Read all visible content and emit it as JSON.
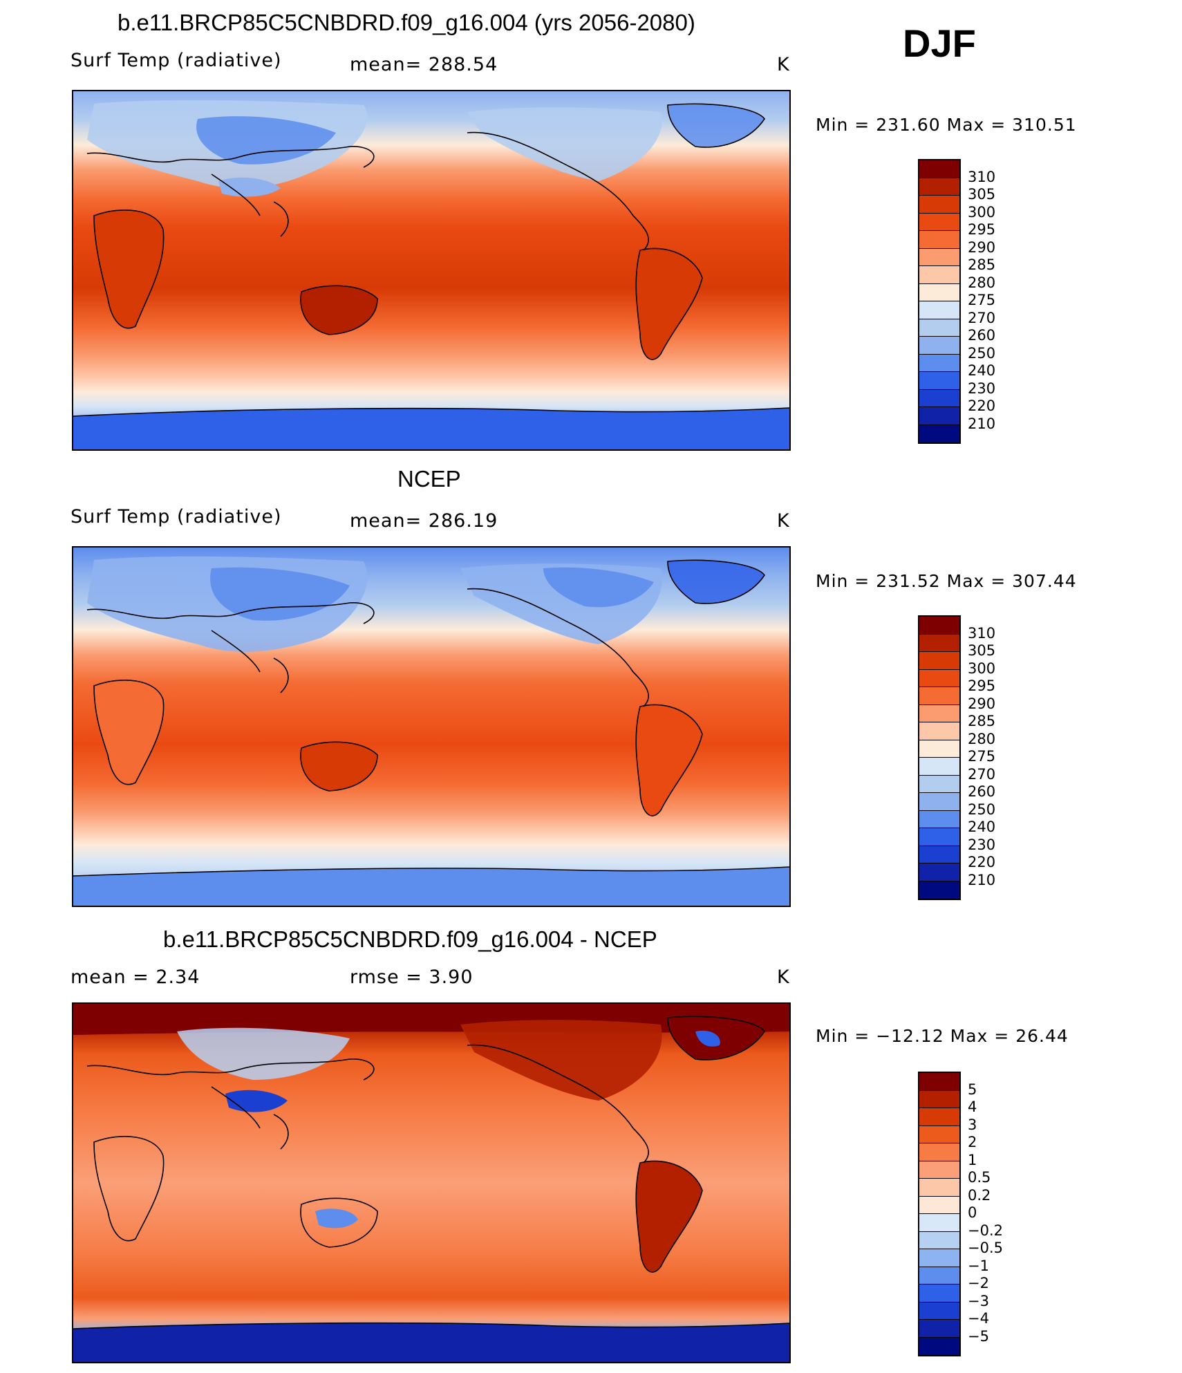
{
  "season": "DJF",
  "panels": [
    {
      "title": "b.e11.BRCP85C5CNBDRD.f09_g16.004 (yrs 2056-2080)",
      "left_label": "Surf Temp (radiative)",
      "center_label": "mean= 288.54",
      "units": "K",
      "minmax": "Min = 231.60 Max = 310.51",
      "colorbar": [
        "310",
        "305",
        "300",
        "295",
        "290",
        "285",
        "280",
        "275",
        "270",
        "260",
        "250",
        "240",
        "230",
        "220",
        "210"
      ]
    },
    {
      "title": "NCEP",
      "left_label": "Surf Temp (radiative)",
      "center_label": "mean= 286.19",
      "units": "K",
      "minmax": "Min = 231.52 Max = 307.44",
      "colorbar": [
        "310",
        "305",
        "300",
        "295",
        "290",
        "285",
        "280",
        "275",
        "270",
        "260",
        "250",
        "240",
        "230",
        "220",
        "210"
      ]
    },
    {
      "title": "b.e11.BRCP85C5CNBDRD.f09_g16.004 - NCEP",
      "left_label": "mean =    2.34",
      "center_label": "rmse =    3.90",
      "units": "K",
      "minmax": "Min = −12.12 Max =   26.44",
      "colorbar": [
        "5",
        "4",
        "3",
        "2",
        "1",
        "0.5",
        "0.2",
        "0",
        "−0.2",
        "−0.5",
        "−1",
        "−2",
        "−3",
        "−4",
        "−5"
      ]
    }
  ],
  "colors": {
    "temp_scale": [
      "#7f0000",
      "#b22000",
      "#d83a05",
      "#e94a12",
      "#f46b33",
      "#fa9b70",
      "#fdc8aa",
      "#fdebd9",
      "#d6e6f6",
      "#b3cdef",
      "#8fb2ef",
      "#5d8ded",
      "#2f60e8",
      "#1b3fd0",
      "#0f22a8",
      "#000a80"
    ],
    "diff_scale": [
      "#7f0000",
      "#b22000",
      "#d83a05",
      "#ec5a1c",
      "#f67b45",
      "#fa9f78",
      "#fcc6a8",
      "#fde8d8",
      "#d9e8f8",
      "#b6d0f2",
      "#8db4f0",
      "#5d8ded",
      "#2f60e8",
      "#1b3fd0",
      "#0f22a8",
      "#000a80"
    ]
  }
}
